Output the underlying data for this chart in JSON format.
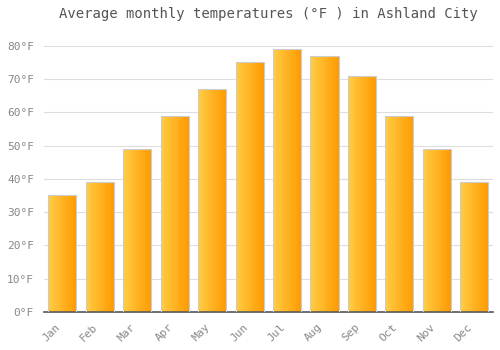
{
  "title": "Average monthly temperatures (°F ) in Ashland City",
  "months": [
    "Jan",
    "Feb",
    "Mar",
    "Apr",
    "May",
    "Jun",
    "Jul",
    "Aug",
    "Sep",
    "Oct",
    "Nov",
    "Dec"
  ],
  "values": [
    35,
    39,
    49,
    59,
    67,
    75,
    79,
    77,
    71,
    59,
    49,
    39
  ],
  "bar_color_left": "#FFCC44",
  "bar_color_right": "#FF9900",
  "bar_edge_color": "#CCCCCC",
  "ylim": [
    0,
    85
  ],
  "yticks": [
    0,
    10,
    20,
    30,
    40,
    50,
    60,
    70,
    80
  ],
  "ytick_labels": [
    "0°F",
    "10°F",
    "20°F",
    "30°F",
    "40°F",
    "50°F",
    "60°F",
    "70°F",
    "80°F"
  ],
  "background_color": "#FFFFFF",
  "grid_color": "#DDDDDD",
  "title_fontsize": 10,
  "tick_fontsize": 8,
  "bar_width": 0.75
}
